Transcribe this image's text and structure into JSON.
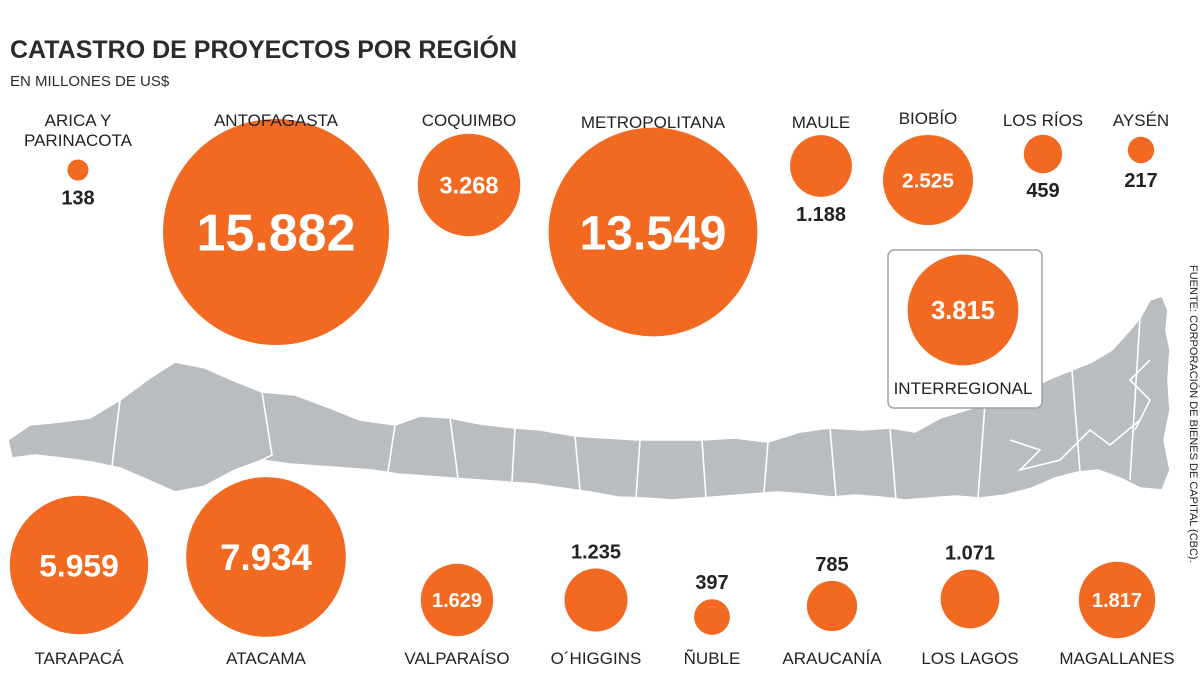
{
  "chart_data": {
    "type": "bubble",
    "title": "CATASTRO DE PROYECTOS POR REGIÓN",
    "subtitle": "EN MILLONES DE US$",
    "source": "FUENTE: CORPORACIÓN DE BIENES DE CAPITAL (CBC).",
    "bubble_color": "#f26a21",
    "map_color": "#b9bdbf",
    "regions": [
      {
        "label": "ARICA Y PARINACOTA",
        "value": 138,
        "value_label": "138"
      },
      {
        "label": "ANTOFAGASTA",
        "value": 15882,
        "value_label": "15.882"
      },
      {
        "label": "COQUIMBO",
        "value": 3268,
        "value_label": "3.268"
      },
      {
        "label": "METROPOLITANA",
        "value": 13549,
        "value_label": "13.549"
      },
      {
        "label": "MAULE",
        "value": 1188,
        "value_label": "1.188"
      },
      {
        "label": "BIOBÍO",
        "value": 2525,
        "value_label": "2.525"
      },
      {
        "label": "LOS RÍOS",
        "value": 459,
        "value_label": "459"
      },
      {
        "label": "AYSÉN",
        "value": 217,
        "value_label": "217"
      },
      {
        "label": "INTERREGIONAL",
        "value": 3815,
        "value_label": "3.815"
      },
      {
        "label": "TARAPACÁ",
        "value": 5959,
        "value_label": "5.959"
      },
      {
        "label": "ATACAMA",
        "value": 7934,
        "value_label": "7.934"
      },
      {
        "label": "VALPARAÍSO",
        "value": 1629,
        "value_label": "1.629"
      },
      {
        "label": "O´HIGGINS",
        "value": 1235,
        "value_label": "1.235"
      },
      {
        "label": "ÑUBLE",
        "value": 397,
        "value_label": "397"
      },
      {
        "label": "ARAUCANÍA",
        "value": 785,
        "value_label": "785"
      },
      {
        "label": "LOS LAGOS",
        "value": 1071,
        "value_label": "1.071"
      },
      {
        "label": "MAGALLANES",
        "value": 1817,
        "value_label": "1.817"
      }
    ]
  }
}
